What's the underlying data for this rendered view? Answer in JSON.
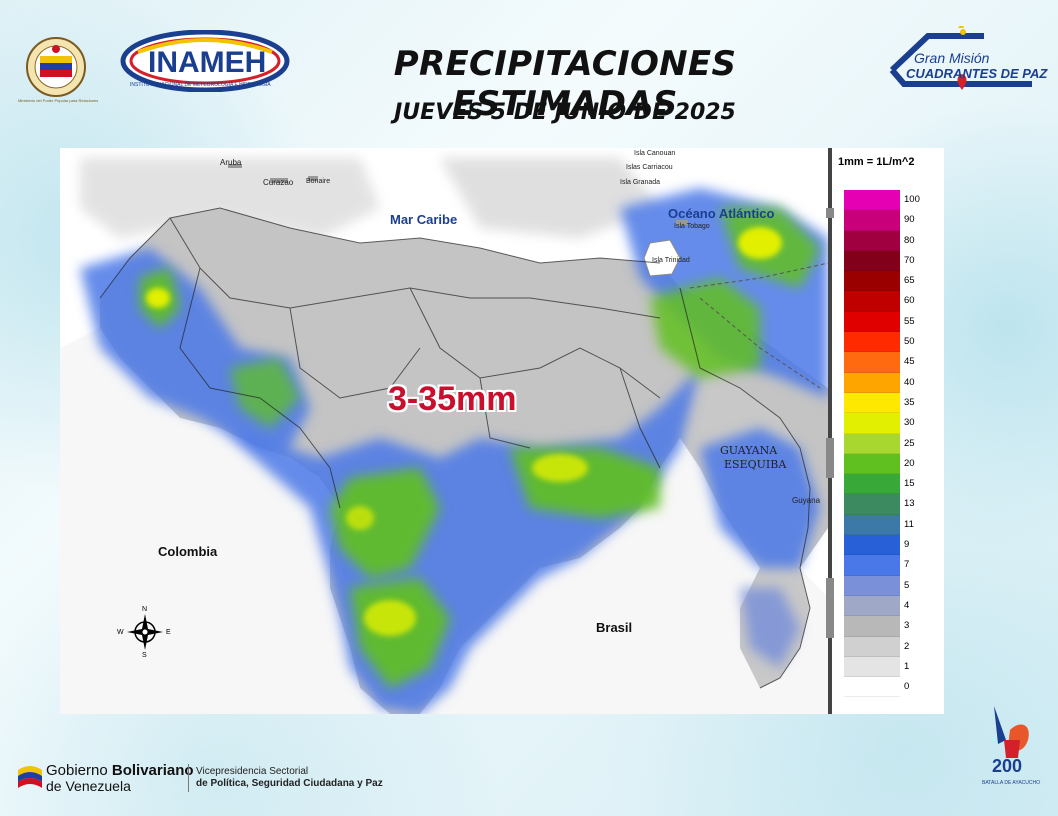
{
  "header": {
    "title": "PRECIPITACIONES ESTIMADAS",
    "subtitle": "JUEVES 5 DE JUNIO DE 2025",
    "inameh_logo_text": "INAMEH",
    "inameh_logo_ring_text": "INSTITUTO NACIONAL DE METEOROLOGÍA E HIDROLOGÍA",
    "govt_seal_ring_text": "Ministerio del Poder Popular para Relaciones Interiores, Justicia y Paz",
    "gmcp_line1": "Gran Misión",
    "gmcp_line2": "CUADRANTES DE PAZ"
  },
  "map": {
    "highlight_range": "3-35mm",
    "labels": {
      "aruba": "Aruba",
      "curazao": "Curazao",
      "bonaire": "Bonaire",
      "mar_caribe": "Mar Caribe",
      "isla_canouan": "Isla Canouan",
      "islas_carriacou": "Islas Carriacou",
      "isla_granada": "Isla Granada",
      "oceano_atlantico": "Océano Atlántico",
      "isla_tobago": "Isla Tobago",
      "isla_trinidad": "Isla Trinidad",
      "guayana_esequiba_1": "GUAYANA",
      "guayana_esequiba_2": "ESEQUIBA",
      "guyana": "Guyana",
      "colombia": "Colombia",
      "brasil": "Brasil"
    },
    "compass": {
      "n": "N",
      "s": "S",
      "e": "E",
      "w": "W"
    }
  },
  "legend": {
    "unit": "1mm = 1L/m^2",
    "levels": [
      {
        "label": "100",
        "color": "#e600b4"
      },
      {
        "label": "90",
        "color": "#c8007a"
      },
      {
        "label": "80",
        "color": "#a00040"
      },
      {
        "label": "70",
        "color": "#82001a"
      },
      {
        "label": "65",
        "color": "#9a0000"
      },
      {
        "label": "60",
        "color": "#c00000"
      },
      {
        "label": "55",
        "color": "#e00000"
      },
      {
        "label": "50",
        "color": "#ff2a00"
      },
      {
        "label": "45",
        "color": "#ff6a10"
      },
      {
        "label": "40",
        "color": "#ffa500"
      },
      {
        "label": "35",
        "color": "#ffe800"
      },
      {
        "label": "30",
        "color": "#e2f000"
      },
      {
        "label": "25",
        "color": "#a8d830"
      },
      {
        "label": "20",
        "color": "#60c020"
      },
      {
        "label": "15",
        "color": "#38a838"
      },
      {
        "label": "13",
        "color": "#3c8a60"
      },
      {
        "label": "11",
        "color": "#3c78a8"
      },
      {
        "label": "9",
        "color": "#2860d8"
      },
      {
        "label": "7",
        "color": "#4a78e8"
      },
      {
        "label": "5",
        "color": "#7a90d8"
      },
      {
        "label": "4",
        "color": "#a0a8c8"
      },
      {
        "label": "3",
        "color": "#b8b8b8"
      },
      {
        "label": "2",
        "color": "#d0d0d0"
      },
      {
        "label": "1",
        "color": "#e4e4e4"
      },
      {
        "label": "0",
        "color": "#ffffff"
      }
    ]
  },
  "footer": {
    "govt_line1_a": "Gobierno ",
    "govt_line1_b": "Bolivariano",
    "govt_line2": "de Venezuela",
    "vice_line1": "Vicepresidencia Sectorial",
    "vice_line2": "de Política, Seguridad Ciudadana y Paz",
    "bicentenario_number": "200",
    "bicentenario_text": "BATALLA DE AYACUCHO"
  },
  "colors": {
    "title": "#111111",
    "highlight": "#c8102e",
    "land_gray": "#b9b9b9",
    "rain_blue": "#4a78e8",
    "rain_green": "#60c020",
    "rain_yellow": "#e2f000"
  }
}
